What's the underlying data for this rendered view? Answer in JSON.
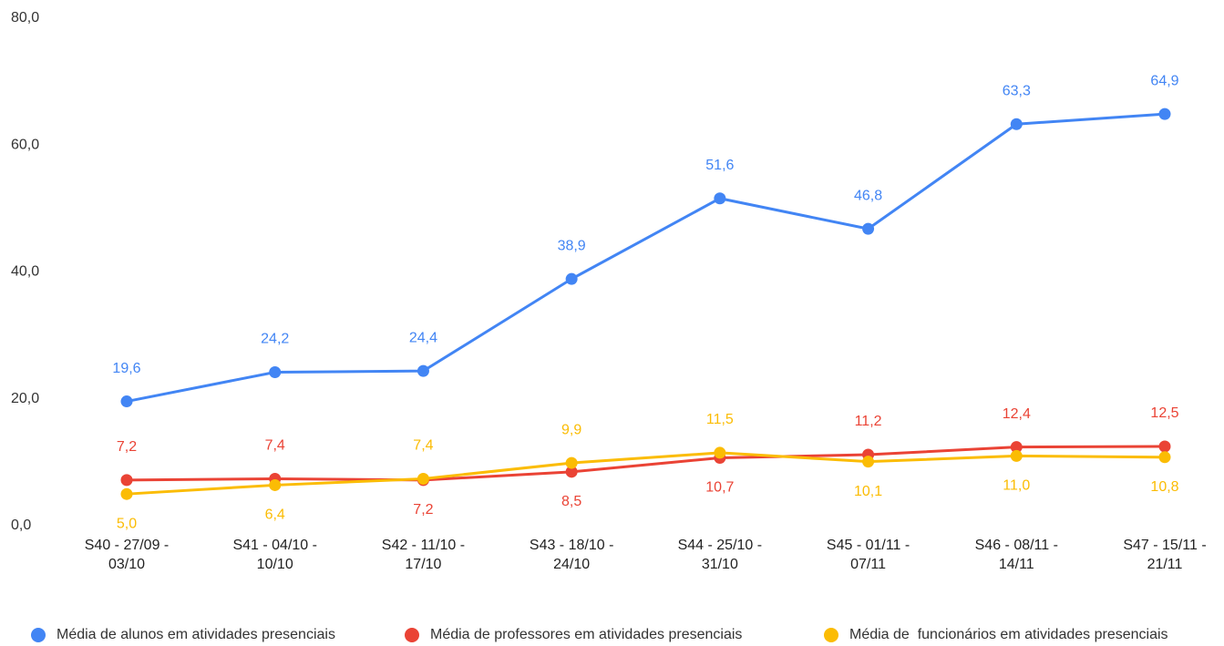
{
  "chart_data": {
    "type": "line",
    "categories": [
      "S40 - 27/09 - 03/10",
      "S41 - 04/10 - 10/10",
      "S42 - 11/10 - 17/10",
      "S43 - 18/10 - 24/10",
      "S44 - 25/10 - 31/10",
      "S45 - 01/11 - 07/11",
      "S46 - 08/11 - 14/11",
      "S47 - 15/11 - 21/11"
    ],
    "series": [
      {
        "name": "Média de alunos em atividades presenciais",
        "color": "#4285f4",
        "values": [
          19.6,
          24.2,
          24.4,
          38.9,
          51.6,
          46.8,
          63.3,
          64.9
        ],
        "value_labels": [
          "19,6",
          "24,2",
          "24,4",
          "38,9",
          "51,6",
          "46,8",
          "63,3",
          "64,9"
        ]
      },
      {
        "name": "Média de professores em atividades presenciais",
        "color": "#ea4335",
        "values": [
          7.2,
          7.4,
          7.2,
          8.5,
          10.7,
          11.2,
          12.4,
          12.5
        ],
        "value_labels": [
          "7,2",
          "7,4",
          "7,2",
          "8,5",
          "10,7",
          "11,2",
          "12,4",
          "12,5"
        ]
      },
      {
        "name": "Média de  funcionários em atividades presenciais",
        "color": "#fbbc04",
        "values": [
          5.0,
          6.4,
          7.4,
          9.9,
          11.5,
          10.1,
          11.0,
          10.8
        ],
        "value_labels": [
          "5,0",
          "6,4",
          "7,4",
          "9,9",
          "11,5",
          "10,1",
          "11,0",
          "10,8"
        ]
      }
    ],
    "ylim": [
      0,
      80
    ],
    "yticks": [
      {
        "value": 0,
        "label": "0,0"
      },
      {
        "value": 20,
        "label": "20,0"
      },
      {
        "value": 40,
        "label": "40,0"
      },
      {
        "value": 60,
        "label": "60,0"
      },
      {
        "value": 80,
        "label": "80,0"
      }
    ],
    "grid": false,
    "legend": "bottom"
  }
}
